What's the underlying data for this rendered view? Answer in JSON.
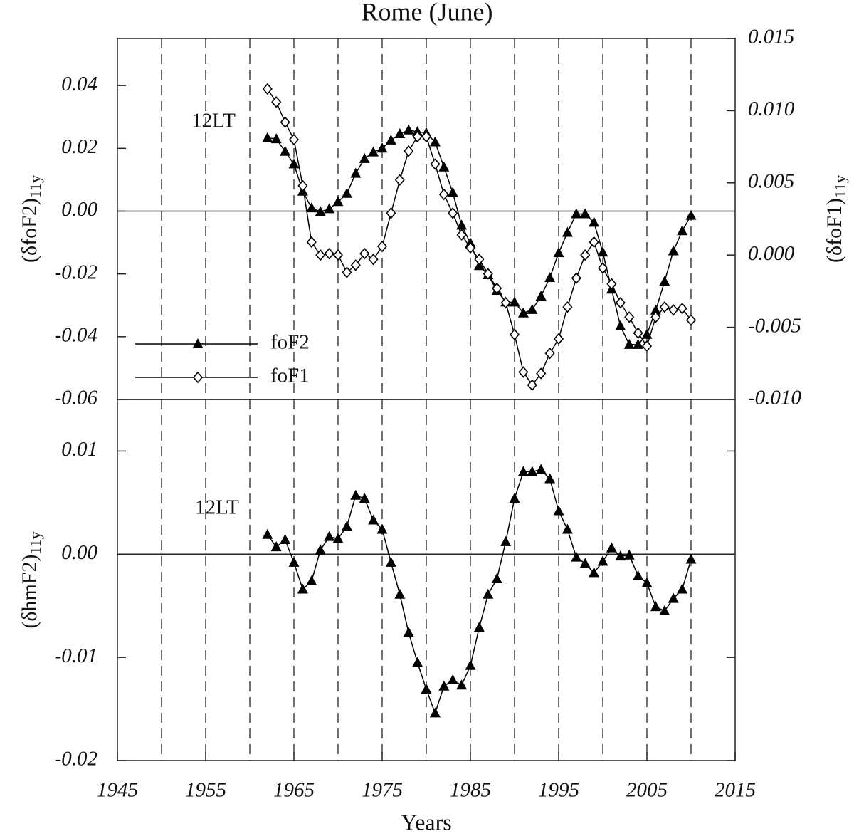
{
  "chart_data": [
    {
      "type": "line",
      "title": "Rome (June)",
      "annotation": "12LT",
      "y_label": "(δfoF2)",
      "y_label_subscript": "11y",
      "y2_label": "(δfoF1)",
      "y2_label_subscript": "11y",
      "xlim": [
        1945,
        2015
      ],
      "xgrid": [
        1950,
        1955,
        1960,
        1965,
        1970,
        1975,
        1980,
        1985,
        1990,
        1995,
        2000,
        2005,
        2010
      ],
      "ylim": [
        -0.06,
        0.055
      ],
      "yticks": [
        -0.06,
        -0.04,
        -0.02,
        {
          "value": 0,
          "label": "0.00"
        },
        0.02,
        0.04
      ],
      "y2lim": [
        -0.01,
        0.015
      ],
      "y2ticks": [
        {
          "value": -0.01,
          "label": "-0.010"
        },
        -0.005,
        {
          "value": 0,
          "label": "0.000"
        },
        0.005,
        {
          "value": 0.01,
          "label": "0.010"
        },
        0.015
      ],
      "reference_line": 0,
      "legend": "lower left",
      "x": [
        1962,
        1963,
        1964,
        1965,
        1966,
        1967,
        1968,
        1969,
        1970,
        1971,
        1972,
        1973,
        1974,
        1975,
        1976,
        1977,
        1978,
        1979,
        1980,
        1981,
        1982,
        1983,
        1984,
        1985,
        1986,
        1987,
        1988,
        1989,
        1990,
        1991,
        1992,
        1993,
        1994,
        1995,
        1996,
        1997,
        1998,
        1999,
        2000,
        2001,
        2002,
        2003,
        2004,
        2005,
        2006,
        2007,
        2008,
        2009,
        2010
      ],
      "series": [
        {
          "name": "foF2",
          "color": "#000000",
          "marker": "triangle",
          "values": [
            0.0233,
            0.023,
            0.019,
            0.015,
            0.0063,
            0.001,
            -0.0002,
            0.0007,
            0.003,
            0.0056,
            0.012,
            0.0167,
            0.0188,
            0.02,
            0.0226,
            0.0246,
            0.0258,
            0.0253,
            0.0249,
            0.022,
            0.014,
            0.0059,
            -0.0045,
            -0.0102,
            -0.0174,
            -0.0203,
            -0.0253,
            -0.029,
            -0.029,
            -0.0325,
            -0.0314,
            -0.0271,
            -0.0212,
            -0.0133,
            -0.0068,
            -0.0009,
            -0.0009,
            -0.0036,
            -0.0131,
            -0.0249,
            -0.0366,
            -0.0425,
            -0.0425,
            -0.0393,
            -0.0316,
            -0.0224,
            -0.0127,
            -0.0063,
            -0.0014
          ]
        },
        {
          "name": "foF1",
          "color": "#000000",
          "marker": "diamond",
          "axis": "y2",
          "values": [
            0.0115,
            0.0106,
            0.0092,
            0.008,
            0.0048,
            0.0009,
            0.0,
            0.0001,
            0.0,
            -0.0012,
            -0.0007,
            0.0001,
            -0.0003,
            0.0006,
            0.0029,
            0.0052,
            0.0072,
            0.0082,
            0.0082,
            0.0063,
            0.0042,
            0.0029,
            0.0014,
            0.0005,
            -0.0003,
            -0.0013,
            -0.0023,
            -0.0033,
            -0.0055,
            -0.0081,
            -0.009,
            -0.0082,
            -0.0068,
            -0.0058,
            -0.0036,
            -0.0016,
            0.0,
            0.0009,
            -0.0009,
            -0.002,
            -0.0033,
            -0.0043,
            -0.0054,
            -0.0063,
            -0.0043,
            -0.0036,
            -0.0038,
            -0.0037,
            -0.0045
          ]
        }
      ]
    },
    {
      "type": "line",
      "annotation": "12LT",
      "y_label": "(δhmF2)",
      "y_label_subscript": "11y",
      "x_label": "Years",
      "xlim": [
        1945,
        2015
      ],
      "xticks": [
        1945,
        1955,
        1965,
        1975,
        1985,
        1995,
        2005,
        2015
      ],
      "xgrid": [
        1950,
        1955,
        1960,
        1965,
        1970,
        1975,
        1980,
        1985,
        1990,
        1995,
        2000,
        2005,
        2010
      ],
      "ylim": [
        -0.02,
        0.015
      ],
      "yticks": [
        -0.02,
        -0.01,
        {
          "value": 0,
          "label": "0.00"
        },
        0.01
      ],
      "reference_line": 0,
      "x": [
        1962,
        1963,
        1964,
        1965,
        1966,
        1967,
        1968,
        1969,
        1970,
        1971,
        1972,
        1973,
        1974,
        1975,
        1976,
        1977,
        1978,
        1979,
        1980,
        1981,
        1982,
        1983,
        1984,
        1985,
        1986,
        1987,
        1988,
        1989,
        1990,
        1991,
        1992,
        1993,
        1994,
        1995,
        1996,
        1997,
        1998,
        1999,
        2000,
        2001,
        2002,
        2003,
        2004,
        2005,
        2006,
        2007,
        2008,
        2009,
        2010
      ],
      "series": [
        {
          "name": "hmF2",
          "color": "#000000",
          "marker": "triangle",
          "values": [
            0.0019,
            0.0007,
            0.0014,
            -0.0008,
            -0.0034,
            -0.0026,
            0.0004,
            0.0017,
            0.0015,
            0.0027,
            0.0057,
            0.0054,
            0.0033,
            0.0024,
            -0.0008,
            -0.0039,
            -0.0076,
            -0.0105,
            -0.0131,
            -0.0154,
            -0.0128,
            -0.0122,
            -0.0127,
            -0.0108,
            -0.0071,
            -0.0039,
            -0.0024,
            0.0012,
            0.0054,
            0.008,
            0.008,
            0.0082,
            0.0073,
            0.0042,
            0.0024,
            -0.0003,
            -0.0009,
            -0.0018,
            -0.0007,
            0.0006,
            -0.0002,
            -0.0001,
            -0.0021,
            -0.0028,
            -0.0051,
            -0.0055,
            -0.0043,
            -0.0034,
            -0.0005
          ]
        }
      ]
    }
  ]
}
